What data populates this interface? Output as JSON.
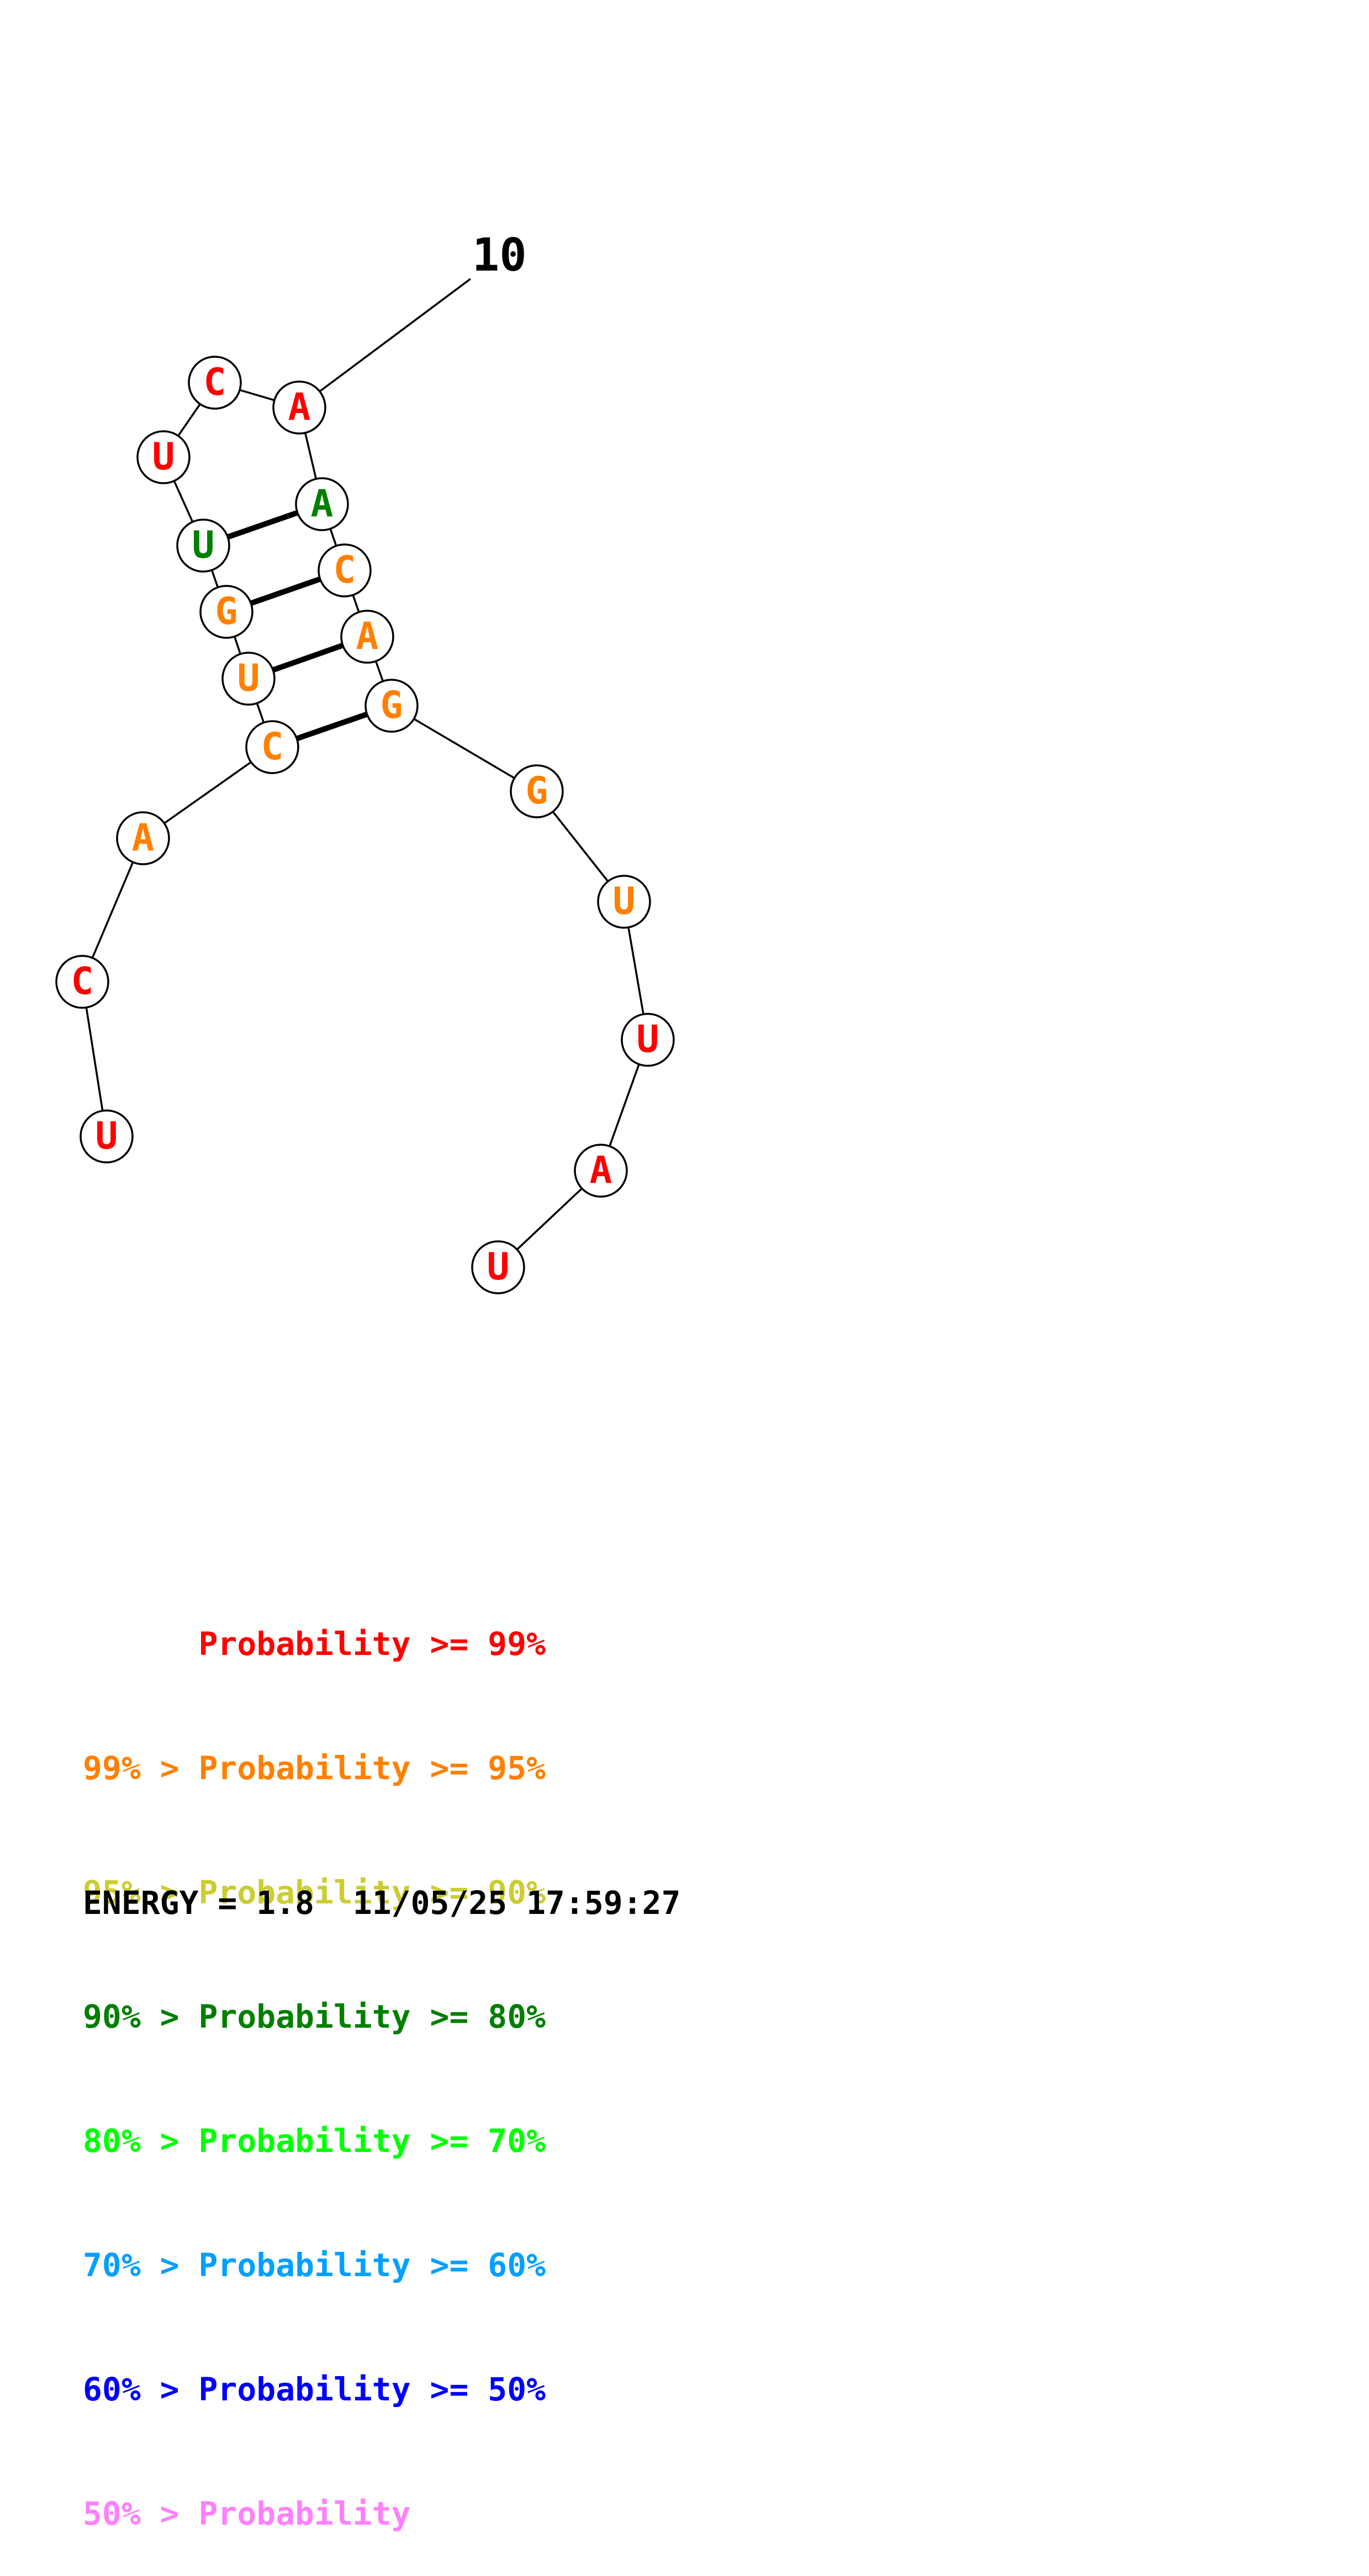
{
  "colors": {
    "red": "#ff0000",
    "orange": "#ff8000",
    "yellow": "#cccc33",
    "green": "#007f00",
    "lime": "#00ff00",
    "cyan": "#00a0ff",
    "blue": "#0000ff",
    "pink": "#ff80ff"
  },
  "nucleotides": [
    {
      "n": 1,
      "base": "U",
      "color": "red"
    },
    {
      "n": 2,
      "base": "C",
      "color": "red"
    },
    {
      "n": 3,
      "base": "A",
      "color": "orange"
    },
    {
      "n": 4,
      "base": "C",
      "color": "orange"
    },
    {
      "n": 5,
      "base": "U",
      "color": "orange"
    },
    {
      "n": 6,
      "base": "G",
      "color": "orange"
    },
    {
      "n": 7,
      "base": "U",
      "color": "green"
    },
    {
      "n": 8,
      "base": "U",
      "color": "red"
    },
    {
      "n": 9,
      "base": "C",
      "color": "red"
    },
    {
      "n": 10,
      "base": "A",
      "color": "red"
    },
    {
      "n": 11,
      "base": "A",
      "color": "green"
    },
    {
      "n": 12,
      "base": "C",
      "color": "orange"
    },
    {
      "n": 13,
      "base": "A",
      "color": "orange"
    },
    {
      "n": 14,
      "base": "G",
      "color": "orange"
    },
    {
      "n": 15,
      "base": "G",
      "color": "orange"
    },
    {
      "n": 16,
      "base": "U",
      "color": "orange"
    },
    {
      "n": 17,
      "base": "U",
      "color": "red"
    },
    {
      "n": 18,
      "base": "A",
      "color": "red"
    },
    {
      "n": 19,
      "base": "U",
      "color": "red"
    }
  ],
  "pairs": [
    [
      4,
      14
    ],
    [
      5,
      13
    ],
    [
      6,
      12
    ],
    [
      7,
      11
    ]
  ],
  "index_label": {
    "text": "10",
    "nucleotide": 10
  },
  "legend": [
    {
      "text": "      Probability >= 99%",
      "color": "red"
    },
    {
      "text": "99% > Probability >= 95%",
      "color": "orange"
    },
    {
      "text": "95% > Probability >= 90%",
      "color": "yellow"
    },
    {
      "text": "90% > Probability >= 80%",
      "color": "green"
    },
    {
      "text": "80% > Probability >= 70%",
      "color": "lime"
    },
    {
      "text": "70% > Probability >= 60%",
      "color": "cyan"
    },
    {
      "text": "60% > Probability >= 50%",
      "color": "blue"
    },
    {
      "text": "50% > Probability",
      "color": "pink"
    }
  ],
  "footer": "ENERGY = 1.8  11/05/25 17:59:27"
}
